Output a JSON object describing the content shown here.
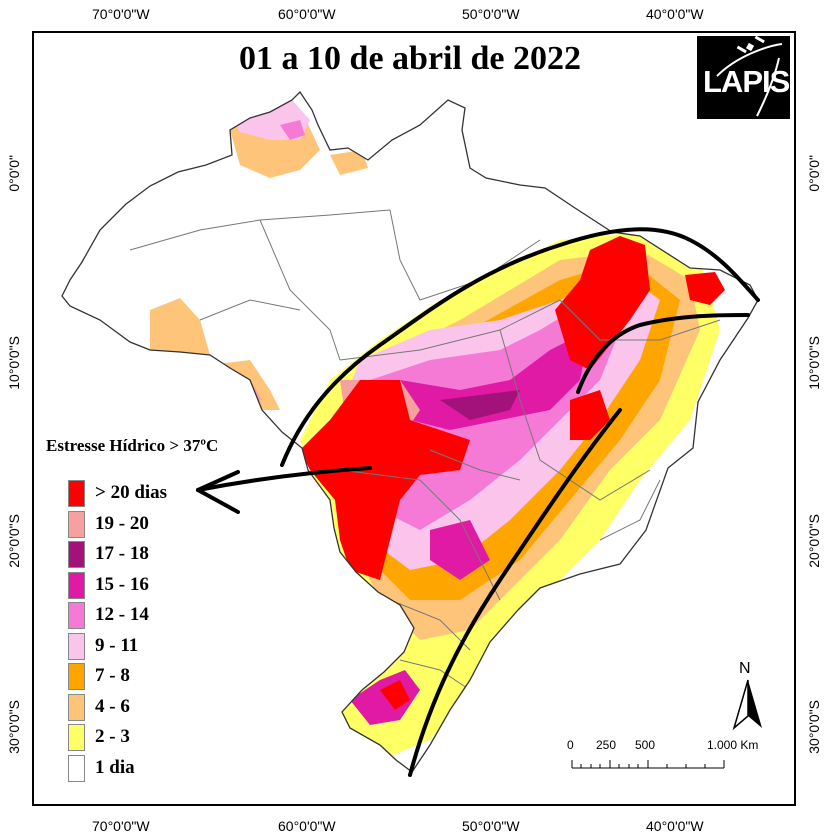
{
  "title": "01 a 10 de abril de 2022",
  "logo": "LAPIS",
  "coords": {
    "top": [
      "70°0'0\"W",
      "60°0'0\"W",
      "50°0'0\"W",
      "40°0'0\"W"
    ],
    "bottom": [
      "70°0'0\"W",
      "60°0'0\"W",
      "50°0'0\"W",
      "40°0'0\"W"
    ],
    "left": [
      "0°0'0\"",
      "10°0'0\"S",
      "20°0'0\"S",
      "30°0'0\"S"
    ],
    "right": [
      "0°0'0\"",
      "10°0'0\"S",
      "20°0'0\"S",
      "30°0'0\"S"
    ]
  },
  "legend": {
    "title": "Estresse Hídrico > 37ºC",
    "items": [
      {
        "label": "> 20 dias",
        "color": "#ff0000"
      },
      {
        "label": "19 - 20",
        "color": "#f7a0a0"
      },
      {
        "label": "17 - 18",
        "color": "#a3127a"
      },
      {
        "label": "15 - 16",
        "color": "#e01aa5"
      },
      {
        "label": "12 - 14",
        "color": "#f47ad6"
      },
      {
        "label": " 9 - 11",
        "color": "#fbc4ea"
      },
      {
        "label": "7  -  8",
        "color": "#ffa500"
      },
      {
        "label": "4  -  6",
        "color": "#fdc47a"
      },
      {
        "label": "2  -  3",
        "color": "#ffff66"
      },
      {
        "label": "1 dia",
        "color": "#ffffff"
      }
    ]
  },
  "scale": {
    "labels": [
      "0",
      "250",
      "500",
      "1.000 Km"
    ]
  },
  "north": "N"
}
